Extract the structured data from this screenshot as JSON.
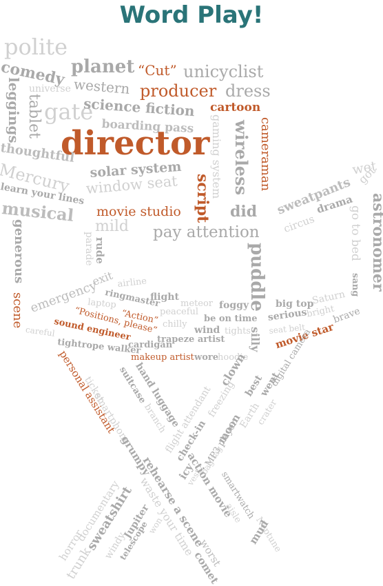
{
  "title": "Word Play!",
  "colors": {
    "title": "#2a7478",
    "highlight": "#c05a2a",
    "grey": "#bcbcbc"
  },
  "words": {
    "polite": "polite",
    "planet": "planet",
    "cut": "“Cut”",
    "unicyclist": "unicyclist",
    "comedy": "comedy",
    "western": "western",
    "producer": "producer",
    "dress": "dress",
    "leggings": "leggings",
    "universe": "universe",
    "tablet": "tablet",
    "gate": "gate",
    "science_fiction": "science fiction",
    "cartoon": "cartoon",
    "boarding_pass": "boarding pass",
    "director": "director",
    "thoughtful": "thoughtful",
    "gaming_system": "gaming system",
    "wireless": "wireless",
    "cameraman": "cameraman",
    "mercury": "Mercury",
    "solar_system": "solar system",
    "window_seat": "window seat",
    "learn_your_lines": "learn your lines",
    "script": "script",
    "wet": "wet",
    "got": "got",
    "sweatpants": "sweatpants",
    "circus": "circus",
    "drama": "drama",
    "astronomer": "astronomer",
    "musical": "musical",
    "movie_studio": "movie studio",
    "did": "did",
    "go_to_bed": "go to bed",
    "sang": "sang",
    "mild": "mild",
    "generous": "generous",
    "pay_attention": "pay attention",
    "parade": "parade",
    "rude": "rude",
    "puddle": "puddle",
    "scene": "scene",
    "exit": "exit",
    "emergency": "emergency",
    "airline": "airline",
    "flight": "flight",
    "ringmaster": "ringmaster",
    "meteor": "meteor",
    "foggy": "foggy",
    "laptop": "laptop",
    "action": "“Action”",
    "peaceful": "peaceful",
    "be_on_time": "be on time",
    "big_top": "big top",
    "saturn": "Saturn",
    "positions_please": "“Positions, please”",
    "chilly": "chilly",
    "wind": "wind",
    "tights": "tights",
    "serious": "serious",
    "bright": "bright",
    "brave": "brave",
    "sound_engineer": "sound engineer",
    "trapeze_artist": "trapeze artist",
    "seat_belt": "seat belt",
    "careful": "careful",
    "cardigan": "cardigan",
    "movie_star": "movie star",
    "tightrope_walker": "tightrope walker",
    "makeup_artist": "makeup artist",
    "wore": "wore",
    "hoodie": "hoodie",
    "silly": "silly",
    "digital_camera": "digital camera",
    "personal_assistant": "personal assistant",
    "ticket": "ticket",
    "smartphone": "smartphone",
    "grumpy": "grumpy",
    "suitcase": "suitcase",
    "branch": "branch",
    "hand_luggage": "hand luggage",
    "clown": "clown",
    "flight_attendant": "flight attendant",
    "freezing": "freezing",
    "best": "best",
    "went": "went",
    "check_in": "check-in",
    "moon": "moon",
    "earth": "Earth",
    "crater": "crater",
    "mp3_player": "MP3 player",
    "bag_tag": "bag tag",
    "icy": "icy",
    "vest": "vest",
    "action_movie": "action movie",
    "smartwatch": "smartwatch",
    "aisle": "aisle",
    "neptune": "Neptune",
    "mud": "mud",
    "horror": "horror",
    "documentary": "documentary",
    "trunk": "trunk",
    "sweatshirt": "sweatshirt",
    "windy": "windy",
    "jupiter": "Jupiter",
    "telescope": "telescope",
    "won": "won",
    "rehearse_a_scene": "rehearse a scene",
    "waste_your_time": "waste your time",
    "worst": "worst",
    "comet": "comet"
  }
}
